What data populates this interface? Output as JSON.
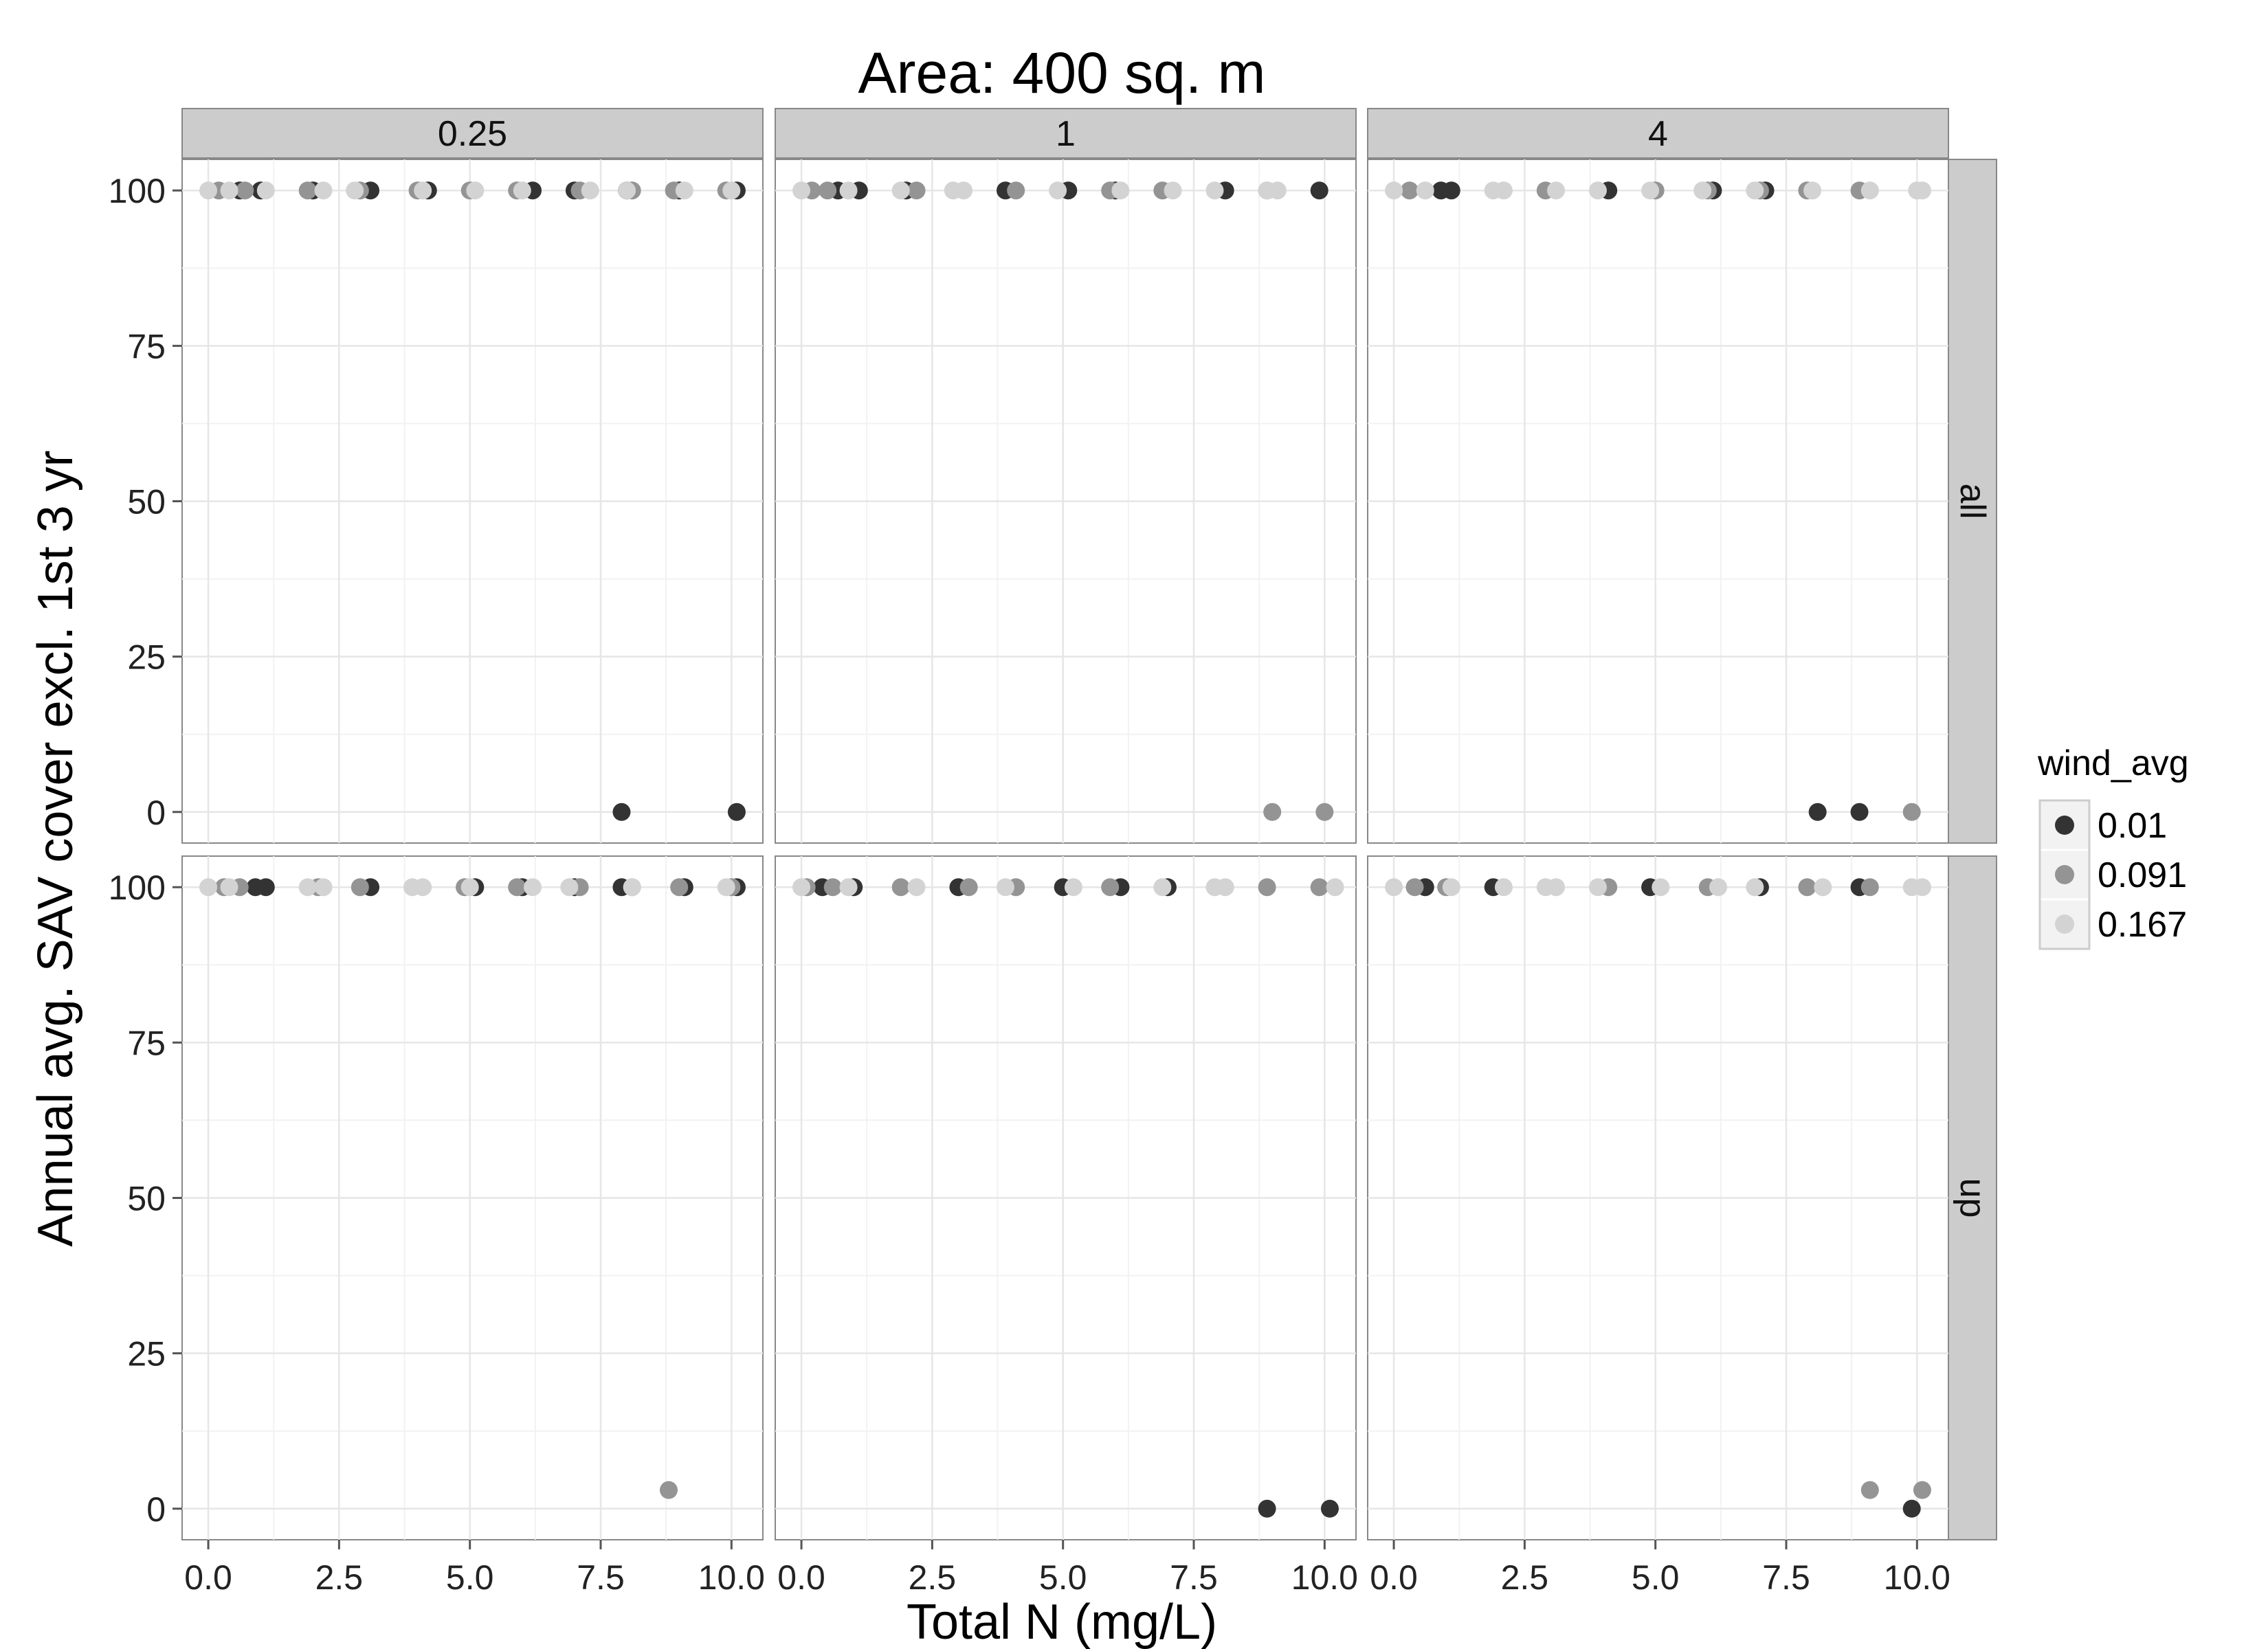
{
  "chart_data": {
    "type": "scatter",
    "title": "Area: 400 sq. m",
    "xlabel": "Total N (mg/L)",
    "ylabel": "Annual avg. SAV cover excl. 1st 3 yr",
    "xlim": [
      -0.5,
      10.6
    ],
    "ylim": [
      -5,
      105
    ],
    "x_ticks": [
      "0.0",
      "2.5",
      "5.0",
      "7.5",
      "10.0"
    ],
    "x_tick_values": [
      0,
      2.5,
      5,
      7.5,
      10
    ],
    "y_ticks": [
      "0",
      "25",
      "50",
      "75",
      "100"
    ],
    "y_tick_values": [
      0,
      25,
      50,
      75,
      100
    ],
    "grid": true,
    "legend_placement": "right",
    "facet_columns": [
      "0.25",
      "1",
      "4"
    ],
    "facet_rows": [
      "all",
      "up"
    ],
    "legend": {
      "title": "wind_avg",
      "entries": [
        {
          "label": "0.01",
          "color": "#333333"
        },
        {
          "label": "0.091",
          "color": "#949494"
        },
        {
          "label": "0.167",
          "color": "#d3d3d3"
        }
      ]
    },
    "panels": [
      {
        "col": "0.25",
        "row": "all",
        "series": [
          {
            "name": "0.01",
            "x": [
              0.6,
              1.0,
              2.0,
              3.1,
              4.2,
              6.2,
              7.0,
              8.0,
              9.0,
              10.1,
              7.9,
              10.1
            ],
            "y": [
              100,
              100,
              100,
              100,
              100,
              100,
              100,
              100,
              100,
              100,
              0,
              0
            ]
          },
          {
            "name": "0.091",
            "x": [
              0.2,
              0.7,
              1.9,
              2.9,
              4.0,
              5.0,
              5.9,
              7.1,
              8.1,
              8.9,
              9.9
            ],
            "y": [
              100,
              100,
              100,
              100,
              100,
              100,
              100,
              100,
              100,
              100,
              100
            ]
          },
          {
            "name": "0.167",
            "x": [
              0.0,
              0.4,
              1.1,
              2.2,
              2.8,
              4.1,
              5.1,
              6.0,
              7.3,
              8.0,
              9.1,
              10.0
            ],
            "y": [
              100,
              100,
              100,
              100,
              100,
              100,
              100,
              100,
              100,
              100,
              100,
              100
            ]
          }
        ]
      },
      {
        "col": "1",
        "row": "all",
        "series": [
          {
            "name": "0.01",
            "x": [
              0.7,
              1.1,
              2.0,
              3.9,
              5.1,
              6.0,
              8.1,
              9.9
            ],
            "y": [
              100,
              100,
              100,
              100,
              100,
              100,
              100,
              100
            ]
          },
          {
            "name": "0.091",
            "x": [
              0.2,
              0.5,
              2.2,
              4.1,
              5.9,
              6.9,
              8.9,
              9.0,
              10.0
            ],
            "y": [
              100,
              100,
              100,
              100,
              100,
              100,
              100,
              0,
              0
            ]
          },
          {
            "name": "0.167",
            "x": [
              0.0,
              0.9,
              1.9,
              2.9,
              3.1,
              4.9,
              6.1,
              7.1,
              7.9,
              8.9,
              9.1
            ],
            "y": [
              100,
              100,
              100,
              100,
              100,
              100,
              100,
              100,
              100,
              100,
              100
            ]
          }
        ]
      },
      {
        "col": "4",
        "row": "all",
        "series": [
          {
            "name": "0.01",
            "x": [
              0.9,
              1.1,
              4.1,
              6.1,
              7.1,
              8.1,
              8.9
            ],
            "y": [
              100,
              100,
              100,
              100,
              100,
              0,
              0
            ]
          },
          {
            "name": "0.091",
            "x": [
              0.3,
              2.9,
              5.0,
              6.0,
              7.0,
              7.9,
              8.9,
              9.9
            ],
            "y": [
              100,
              100,
              100,
              100,
              100,
              100,
              100,
              0
            ]
          },
          {
            "name": "0.167",
            "x": [
              0.0,
              0.6,
              1.9,
              2.1,
              3.1,
              3.9,
              4.9,
              5.9,
              6.9,
              8.0,
              9.1,
              10.0,
              10.1
            ],
            "y": [
              100,
              100,
              100,
              100,
              100,
              100,
              100,
              100,
              100,
              100,
              100,
              100,
              100
            ]
          }
        ]
      },
      {
        "col": "0.25",
        "row": "up",
        "series": [
          {
            "name": "0.01",
            "x": [
              0.9,
              1.1,
              3.1,
              5.1,
              6.0,
              7.0,
              7.9,
              9.1,
              10.1
            ],
            "y": [
              100,
              100,
              100,
              100,
              100,
              100,
              100,
              100,
              100
            ]
          },
          {
            "name": "0.091",
            "x": [
              0.3,
              0.6,
              2.1,
              2.9,
              4.9,
              5.9,
              7.1,
              8.1,
              9.0,
              10.0,
              8.8
            ],
            "y": [
              100,
              100,
              100,
              100,
              100,
              100,
              100,
              100,
              100,
              100,
              3
            ]
          },
          {
            "name": "0.167",
            "x": [
              0.0,
              0.4,
              1.9,
              2.2,
              3.9,
              4.1,
              5.0,
              6.2,
              6.9,
              8.1,
              9.9
            ],
            "y": [
              100,
              100,
              100,
              100,
              100,
              100,
              100,
              100,
              100,
              100,
              100
            ]
          }
        ]
      },
      {
        "col": "1",
        "row": "up",
        "series": [
          {
            "name": "0.01",
            "x": [
              0.4,
              1.0,
              3.0,
              5.0,
              6.1,
              7.0,
              8.9,
              10.1
            ],
            "y": [
              100,
              100,
              100,
              100,
              100,
              100,
              0,
              0
            ]
          },
          {
            "name": "0.091",
            "x": [
              0.1,
              0.6,
              1.9,
              3.2,
              4.1,
              5.9,
              8.9,
              9.9
            ],
            "y": [
              100,
              100,
              100,
              100,
              100,
              100,
              100,
              100
            ]
          },
          {
            "name": "0.167",
            "x": [
              0.0,
              0.9,
              2.2,
              3.9,
              5.2,
              6.9,
              7.9,
              8.1,
              10.2
            ],
            "y": [
              100,
              100,
              100,
              100,
              100,
              100,
              100,
              100,
              100
            ]
          }
        ]
      },
      {
        "col": "4",
        "row": "up",
        "series": [
          {
            "name": "0.01",
            "x": [
              0.6,
              1.9,
              4.9,
              7.0,
              8.9,
              9.9
            ],
            "y": [
              100,
              100,
              100,
              100,
              100,
              0
            ]
          },
          {
            "name": "0.091",
            "x": [
              0.4,
              1.0,
              4.1,
              6.0,
              7.9,
              9.1,
              9.1,
              10.1
            ],
            "y": [
              100,
              100,
              100,
              100,
              100,
              100,
              3,
              3
            ]
          },
          {
            "name": "0.167",
            "x": [
              0.0,
              1.1,
              2.1,
              2.9,
              3.1,
              3.9,
              5.1,
              6.2,
              6.9,
              8.2,
              9.9,
              10.1
            ],
            "y": [
              100,
              100,
              100,
              100,
              100,
              100,
              100,
              100,
              100,
              100,
              100,
              100
            ]
          }
        ]
      }
    ]
  }
}
